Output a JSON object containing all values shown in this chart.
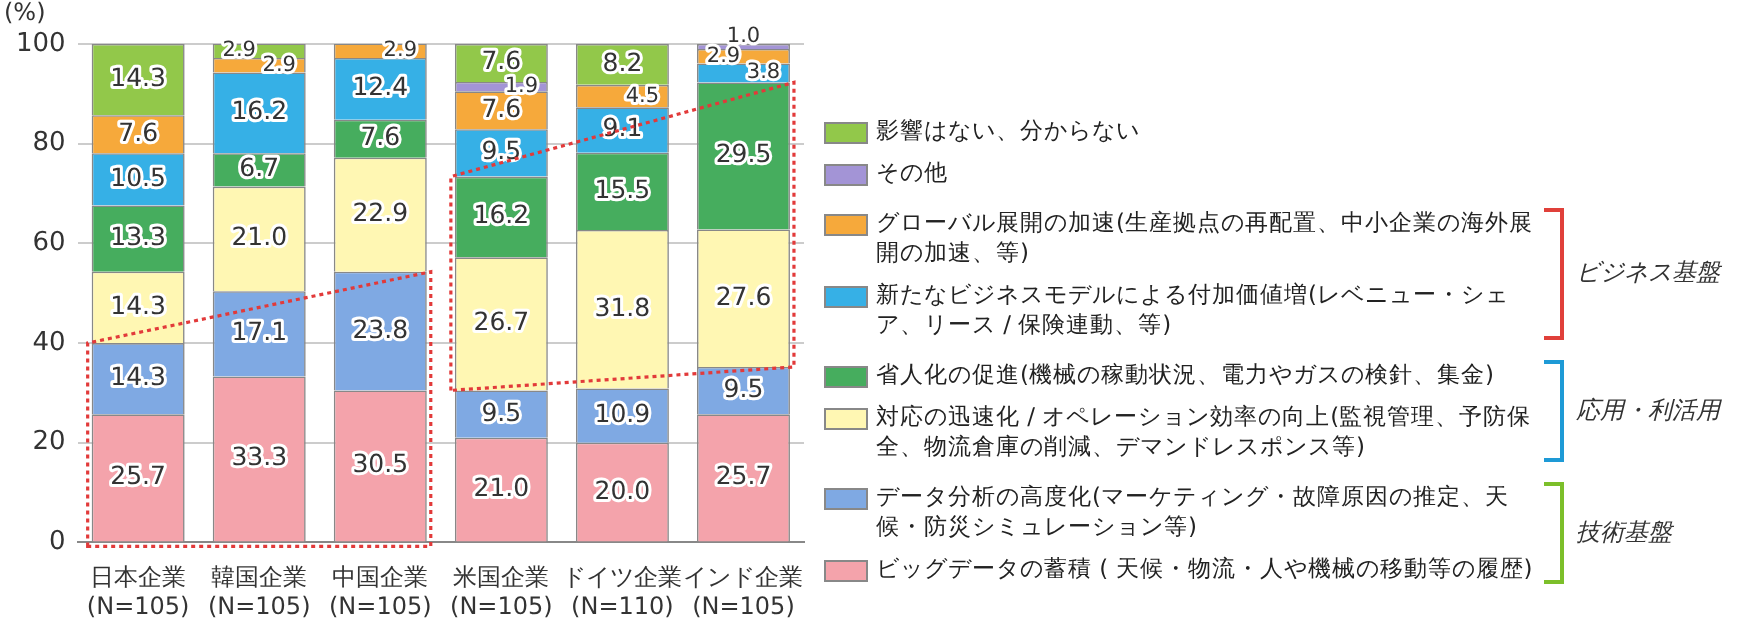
{
  "chart_data": {
    "type": "bar",
    "stacked": true,
    "ylabel": "(%)",
    "categories": [
      "日本企業\n(N=105)",
      "韓国企業\n(N=105)",
      "中国企業\n(N=105)",
      "米国企業\n(N=105)",
      "ドイツ企業\n(N=110)",
      "インド企業\n(N=105)"
    ],
    "series": [
      {
        "name": "ビッグデータの蓄積 ( 天候・物流・人や機械の移動等の履歴)",
        "color": "#f4a3ab",
        "values": [
          25.7,
          33.3,
          30.5,
          21.0,
          20.0,
          25.7
        ],
        "value_labels": [
          "25.7",
          "33.3",
          "30.5",
          "21.0",
          "20.0",
          "25.7"
        ]
      },
      {
        "name": "データ分析の高度化(マーケティング・故障原因の推定、天候・防災シミュレーション等)",
        "color": "#7fa9e3",
        "values": [
          14.3,
          17.1,
          23.8,
          9.5,
          10.9,
          9.5
        ],
        "value_labels": [
          "14.3",
          "17.1",
          "23.8",
          "9.5",
          "10.9",
          "9.5"
        ]
      },
      {
        "name": "対応の迅速化 / オペレーション効率の向上(監視管理、予防保全、物流倉庫の削減、デマンドレスポンス等)",
        "color": "#fff7b3",
        "values": [
          14.3,
          21.0,
          22.9,
          26.7,
          31.8,
          27.6
        ],
        "value_labels": [
          "14.3",
          "21.0",
          "22.9",
          "26.7",
          "31.8",
          "27.6"
        ]
      },
      {
        "name": "省人化の促進(機械の稼動状況、電力やガスの検針、集金)",
        "color": "#46ad5e",
        "values": [
          13.3,
          6.7,
          7.6,
          16.2,
          15.5,
          29.5
        ],
        "value_labels": [
          "13.3",
          "6.7",
          "7.6",
          "16.2",
          "15.5",
          "29.5"
        ]
      },
      {
        "name": "新たなビジネスモデルによる付加価値増(レベニュー・シェア、リース / 保険連動、等)",
        "color": "#36b0e6",
        "values": [
          10.5,
          16.2,
          12.4,
          9.5,
          9.1,
          3.8
        ],
        "value_labels": [
          "10.5",
          "16.2",
          "12.4",
          "9.5",
          "9.1",
          "3.8"
        ]
      },
      {
        "name": "グローバル展開の加速(生産拠点の再配置、中小企業の海外展開の加速、等)",
        "color": "#f6a93b",
        "values": [
          7.6,
          2.9,
          2.9,
          7.6,
          4.5,
          2.9
        ],
        "value_labels": [
          "7.6",
          "2.9",
          "2.9",
          "7.6",
          "4.5",
          "2.9"
        ]
      },
      {
        "name": "その他",
        "color": "#a394d6",
        "values": [
          null,
          null,
          null,
          1.9,
          null,
          1.0
        ],
        "value_labels": [
          null,
          null,
          null,
          "1.9",
          null,
          "1.0"
        ]
      },
      {
        "name": "影響はない、分からない",
        "color": "#92c84a",
        "values": [
          14.3,
          2.9,
          null,
          7.6,
          8.2,
          null
        ],
        "value_labels": [
          "14.3",
          "2.9",
          null,
          "7.6",
          "8.2",
          null
        ]
      }
    ],
    "ylim": [
      0,
      100
    ],
    "yticks": [
      0,
      20,
      40,
      60,
      80,
      100
    ],
    "grid": "y",
    "legend": "right",
    "annotations": [
      "ビジネス基盤",
      "応用・利活用",
      "技術基盤"
    ]
  }
}
